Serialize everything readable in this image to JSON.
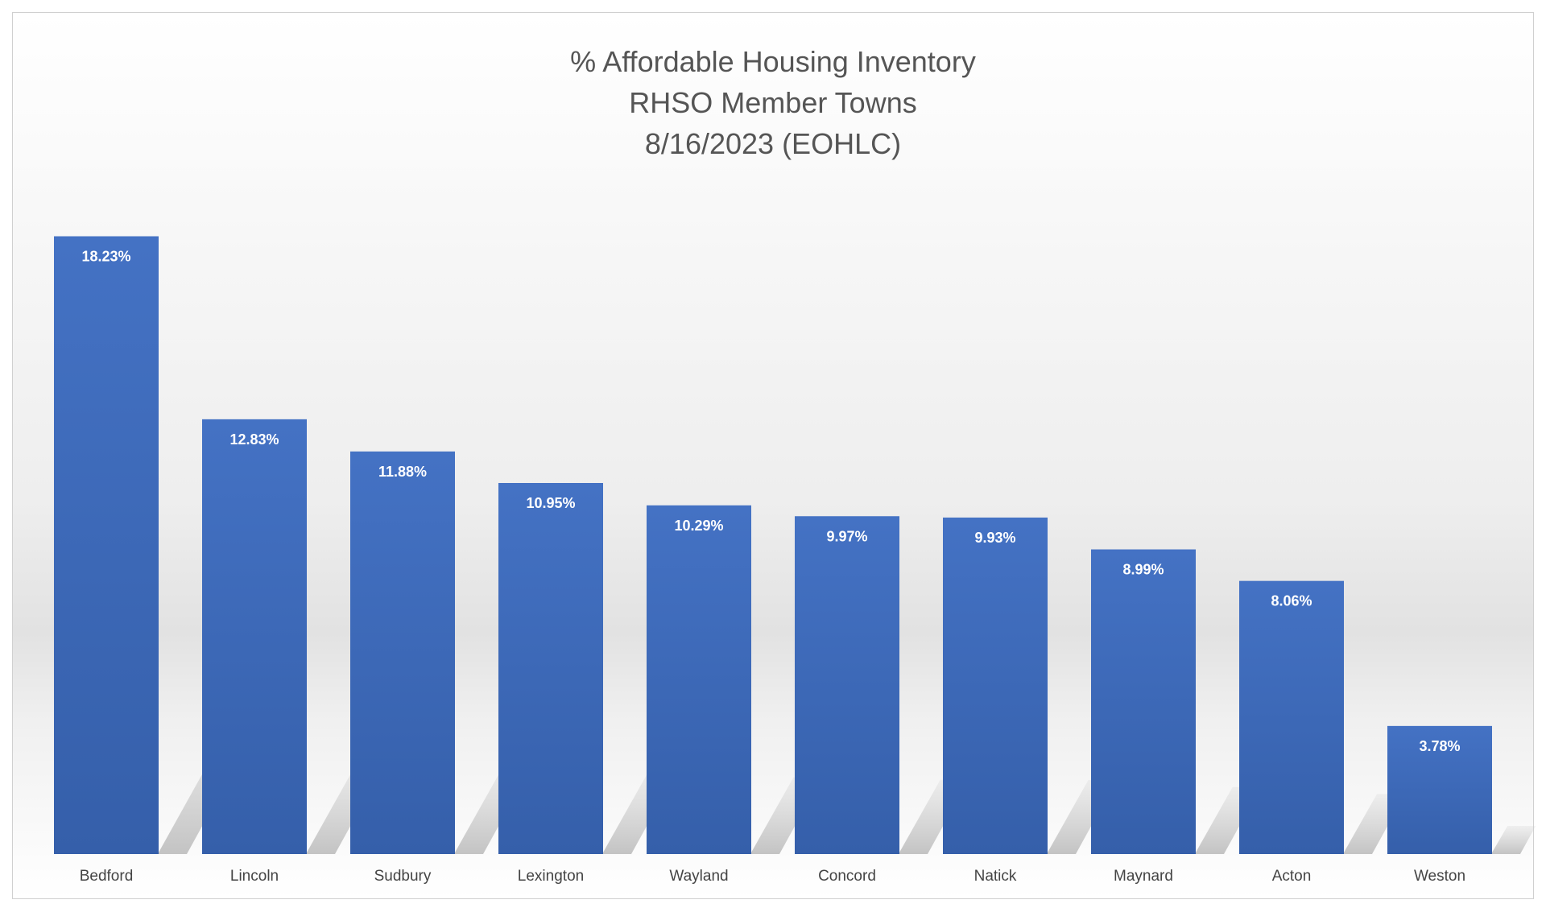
{
  "chart_data": {
    "type": "bar",
    "title": [
      "% Affordable Housing Inventory",
      "RHSO Member Towns",
      "8/16/2023 (EOHLC)"
    ],
    "categories": [
      "Bedford",
      "Lincoln",
      "Sudbury",
      "Lexington",
      "Wayland",
      "Concord",
      "Natick",
      "Maynard",
      "Acton",
      "Weston"
    ],
    "values": [
      18.23,
      12.83,
      11.88,
      10.95,
      10.29,
      9.97,
      9.93,
      8.99,
      8.06,
      3.78
    ],
    "data_labels": [
      "18.23%",
      "12.83%",
      "11.88%",
      "10.95%",
      "10.29%",
      "9.97%",
      "9.93%",
      "8.99%",
      "8.06%",
      "3.78%"
    ],
    "xlabel": "",
    "ylabel": "",
    "ylim": [
      0,
      20
    ],
    "grid": false,
    "legend": "none",
    "bar_color": "#4472C4"
  }
}
